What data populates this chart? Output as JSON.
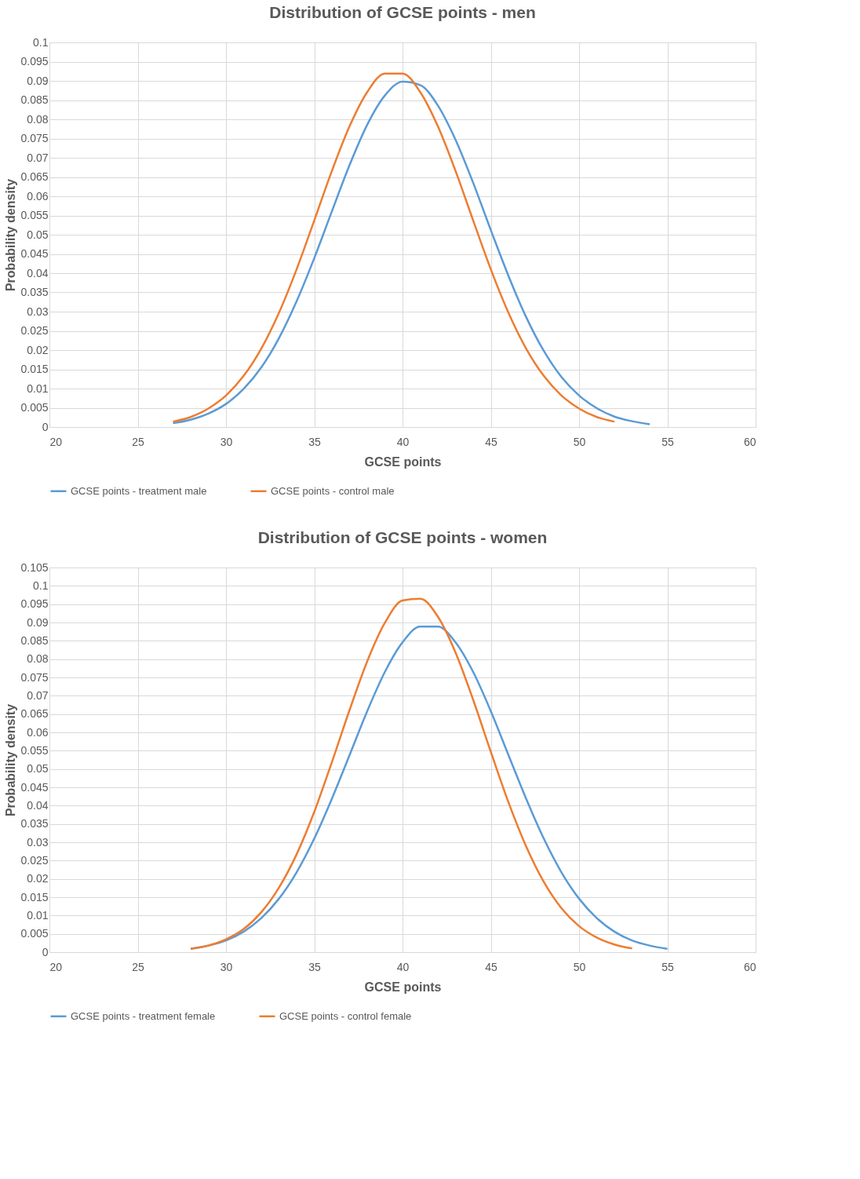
{
  "chart_data": [
    {
      "type": "line",
      "title": "Distribution of GCSE points - men",
      "xlabel": "GCSE points",
      "ylabel": "Probability density",
      "xlim": [
        20,
        60
      ],
      "xticks": [
        20,
        25,
        30,
        35,
        40,
        45,
        50,
        55,
        60
      ],
      "ylim": [
        0,
        0.1
      ],
      "yticks": [
        0,
        0.005,
        0.01,
        0.015,
        0.02,
        0.025,
        0.03,
        0.035,
        0.04,
        0.045,
        0.05,
        0.055,
        0.06,
        0.065,
        0.07,
        0.075,
        0.08,
        0.085,
        0.09,
        0.095,
        0.1
      ],
      "grid": true,
      "legend": "bottom",
      "series": [
        {
          "name": "GCSE points - treatment male",
          "color": "#5b9bd5",
          "x": [
            27,
            28,
            29,
            30,
            31,
            32,
            33,
            34,
            35,
            36,
            37,
            38,
            39,
            40,
            41,
            42,
            43,
            44,
            45,
            46,
            47,
            48,
            49,
            50,
            51,
            52,
            53,
            54
          ],
          "values": [
            0.001,
            0.0019,
            0.0035,
            0.006,
            0.0099,
            0.0155,
            0.0231,
            0.0327,
            0.0439,
            0.0561,
            0.0681,
            0.0786,
            0.0862,
            0.0898,
            0.0889,
            0.0836,
            0.0747,
            0.0635,
            0.0512,
            0.0393,
            0.0286,
            0.0198,
            0.013,
            0.0082,
            0.0049,
            0.0027,
            0.0015,
            0.0007
          ]
        },
        {
          "name": "GCSE points - control male",
          "color": "#ed7d31",
          "x": [
            27,
            28,
            29,
            30,
            31,
            32,
            33,
            34,
            35,
            36,
            37,
            38,
            39,
            40,
            41,
            42,
            43,
            44,
            45,
            46,
            47,
            48,
            49,
            50,
            51,
            52
          ],
          "values": [
            0.0014,
            0.0026,
            0.0048,
            0.0082,
            0.0133,
            0.0204,
            0.0297,
            0.041,
            0.0537,
            0.0666,
            0.0782,
            0.0871,
            0.0919,
            0.0919,
            0.0871,
            0.0782,
            0.0666,
            0.0537,
            0.041,
            0.0297,
            0.0204,
            0.0133,
            0.0082,
            0.0048,
            0.0026,
            0.0014
          ]
        }
      ]
    },
    {
      "type": "line",
      "title": "Distribution of GCSE points - women",
      "xlabel": "GCSE points",
      "ylabel": "Probability density",
      "xlim": [
        20,
        60
      ],
      "xticks": [
        20,
        25,
        30,
        35,
        40,
        45,
        50,
        55,
        60
      ],
      "ylim": [
        0,
        0.105
      ],
      "yticks": [
        0,
        0.005,
        0.01,
        0.015,
        0.02,
        0.025,
        0.03,
        0.035,
        0.04,
        0.045,
        0.05,
        0.055,
        0.06,
        0.065,
        0.07,
        0.075,
        0.08,
        0.085,
        0.09,
        0.095,
        0.1,
        0.105
      ],
      "grid": true,
      "legend": "bottom",
      "series": [
        {
          "name": "GCSE points - treatment female",
          "color": "#5b9bd5",
          "x": [
            28,
            29,
            30,
            31,
            32,
            33,
            34,
            35,
            36,
            37,
            38,
            39,
            40,
            41,
            42,
            43,
            44,
            45,
            46,
            47,
            48,
            49,
            50,
            51,
            52,
            53,
            54,
            55
          ],
          "values": [
            0.0009,
            0.0018,
            0.0032,
            0.0056,
            0.0093,
            0.0146,
            0.0218,
            0.031,
            0.0419,
            0.0538,
            0.0658,
            0.0765,
            0.0846,
            0.0889,
            0.0889,
            0.0846,
            0.0765,
            0.0658,
            0.0538,
            0.0419,
            0.031,
            0.0218,
            0.0146,
            0.0093,
            0.0056,
            0.0032,
            0.0018,
            0.0009
          ]
        },
        {
          "name": "GCSE points - control female",
          "color": "#ed7d31",
          "x": [
            28,
            29,
            30,
            31,
            32,
            33,
            34,
            35,
            36,
            37,
            38,
            39,
            40,
            41,
            42,
            43,
            44,
            45,
            46,
            47,
            48,
            49,
            50,
            51,
            52,
            53
          ],
          "values": [
            0.0009,
            0.0018,
            0.0035,
            0.0063,
            0.0109,
            0.0176,
            0.0267,
            0.0383,
            0.0519,
            0.0661,
            0.0794,
            0.0899,
            0.096,
            0.0965,
            0.0916,
            0.0818,
            0.0689,
            0.0547,
            0.0409,
            0.0289,
            0.0192,
            0.012,
            0.0071,
            0.004,
            0.0021,
            0.001
          ]
        }
      ]
    }
  ]
}
